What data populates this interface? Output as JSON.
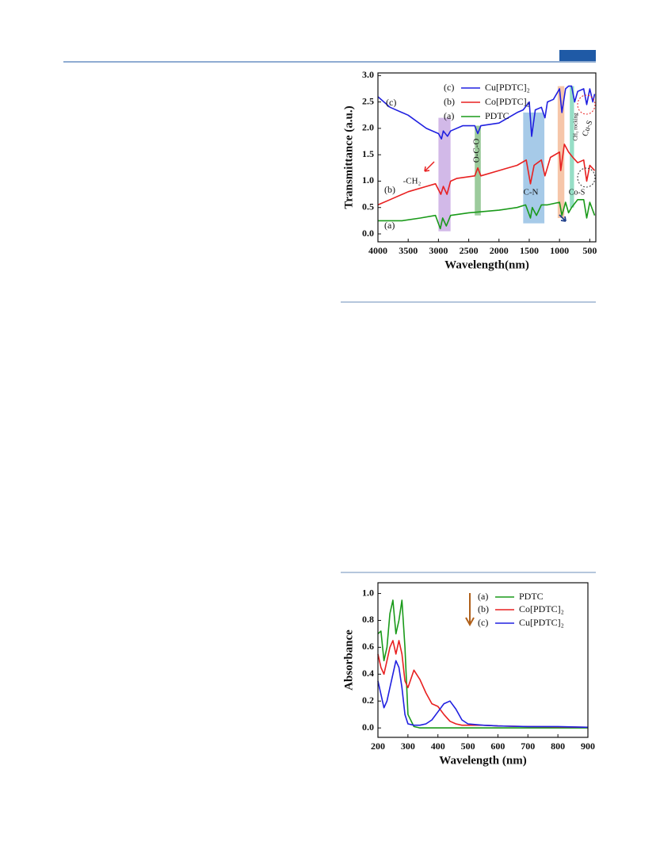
{
  "chart_data": [
    {
      "type": "line",
      "y_label": "Transmittance (a.u.)",
      "x_label": "Wavelength(nm)",
      "xlim": [
        4000,
        400
      ],
      "ylim": [
        -0.15,
        3.05
      ],
      "xticks": [
        4000,
        3500,
        3000,
        2500,
        2000,
        1500,
        1000,
        500
      ],
      "yticks": [
        {
          "value": 0,
          "label": "0.0"
        },
        0.5,
        {
          "value": 1,
          "label": "1.0"
        },
        1.5,
        {
          "value": 2,
          "label": "2.0"
        },
        2.5,
        {
          "value": 3,
          "label": "3.0"
        }
      ],
      "series": [
        {
          "name": "Cu[PDTC]₂",
          "label": "(c)",
          "color": "#2020e0",
          "x": [
            4000,
            3800,
            3500,
            3200,
            3000,
            2950,
            2920,
            2850,
            2800,
            2600,
            2400,
            2350,
            2300,
            2000,
            1700,
            1600,
            1500,
            1460,
            1400,
            1300,
            1240,
            1200,
            1100,
            1000,
            960,
            900,
            850,
            800,
            750,
            700,
            600,
            550,
            500,
            450,
            420
          ],
          "values": [
            2.6,
            2.4,
            2.25,
            2.0,
            1.9,
            1.8,
            1.95,
            1.85,
            1.95,
            2.05,
            2.05,
            1.9,
            2.05,
            2.1,
            2.3,
            2.35,
            2.5,
            1.85,
            2.35,
            2.4,
            2.2,
            2.5,
            2.55,
            2.75,
            2.3,
            2.75,
            2.8,
            2.8,
            2.5,
            2.7,
            2.75,
            2.45,
            2.75,
            2.5,
            2.65
          ]
        },
        {
          "name": "Co[PDTC]₂",
          "label": "(b)",
          "color": "#e82020",
          "x": [
            4000,
            3800,
            3500,
            3200,
            3050,
            2960,
            2920,
            2860,
            2800,
            2700,
            2400,
            2350,
            2300,
            2000,
            1700,
            1550,
            1480,
            1420,
            1300,
            1240,
            1150,
            1000,
            980,
            920,
            850,
            780,
            700,
            600,
            550,
            500,
            420
          ],
          "values": [
            0.55,
            0.65,
            0.8,
            0.9,
            0.95,
            0.75,
            0.9,
            0.75,
            1.0,
            1.05,
            1.1,
            1.25,
            1.1,
            1.2,
            1.3,
            1.4,
            0.95,
            1.3,
            1.4,
            1.1,
            1.45,
            1.55,
            1.2,
            1.7,
            1.55,
            1.45,
            1.35,
            1.4,
            1.0,
            1.3,
            1.2
          ]
        },
        {
          "name": "PDTC",
          "label": "(a)",
          "color": "#1a9a1a",
          "x": [
            4000,
            3600,
            3300,
            3050,
            2970,
            2930,
            2870,
            2800,
            2500,
            2000,
            1700,
            1560,
            1480,
            1450,
            1380,
            1300,
            1200,
            1000,
            960,
            900,
            850,
            800,
            700,
            600,
            550,
            500,
            420
          ],
          "values": [
            0.25,
            0.25,
            0.3,
            0.35,
            0.1,
            0.3,
            0.15,
            0.35,
            0.4,
            0.45,
            0.5,
            0.55,
            0.3,
            0.5,
            0.35,
            0.55,
            0.55,
            0.6,
            0.35,
            0.6,
            0.4,
            0.5,
            0.65,
            0.65,
            0.3,
            0.6,
            0.35
          ]
        }
      ],
      "bands": [
        {
          "xrange": [
            3000,
            2800
          ],
          "yrange": [
            0.05,
            2.2
          ],
          "color": "#b48ad8"
        },
        {
          "xrange": [
            2400,
            2300
          ],
          "yrange": [
            0.35,
            2.05
          ],
          "color": "#5aa85a"
        },
        {
          "xrange": [
            1600,
            1250
          ],
          "yrange": [
            0.2,
            2.3
          ],
          "color": "#6aa6d8"
        },
        {
          "xrange": [
            1030,
            920
          ],
          "yrange": [
            0.3,
            2.8
          ],
          "color": "#f0a070"
        },
        {
          "xrange": [
            830,
            760
          ],
          "yrange": [
            0.5,
            2.8
          ],
          "color": "#50c8a0"
        }
      ],
      "annotations": [
        "-CH₂",
        "O-C-O",
        "C-N",
        "CH₂ rocking",
        "Co-S",
        "Cu-S"
      ]
    },
    {
      "type": "line",
      "y_label": "Absorbance",
      "x_label": "Wavelength (nm)",
      "xlim": [
        200,
        900
      ],
      "ylim": [
        -0.07,
        1.08
      ],
      "xticks": [
        200,
        300,
        400,
        500,
        600,
        700,
        800,
        900
      ],
      "yticks": [
        {
          "value": 0,
          "label": "0.0"
        },
        0.2,
        0.4,
        0.6,
        0.8,
        {
          "value": 1,
          "label": "1.0"
        }
      ],
      "x": [
        200,
        210,
        220,
        230,
        240,
        250,
        260,
        270,
        280,
        290,
        300,
        320,
        340,
        360,
        380,
        400,
        420,
        440,
        460,
        480,
        500,
        550,
        600,
        700,
        800,
        900
      ],
      "series": [
        {
          "name": "PDTC",
          "label": "(a)",
          "color": "#1a9a1a",
          "values": [
            0.7,
            0.72,
            0.5,
            0.6,
            0.85,
            0.95,
            0.7,
            0.8,
            0.95,
            0.6,
            0.1,
            0.01,
            0,
            0,
            0,
            0,
            0,
            0,
            0,
            0,
            0,
            0,
            0,
            0,
            0,
            0
          ]
        },
        {
          "name": "Co[PDTC]₂",
          "label": "(b)",
          "color": "#e82020",
          "values": [
            0.55,
            0.45,
            0.4,
            0.5,
            0.6,
            0.65,
            0.55,
            0.65,
            0.55,
            0.35,
            0.3,
            0.43,
            0.36,
            0.26,
            0.18,
            0.16,
            0.1,
            0.05,
            0.03,
            0.02,
            0.02,
            0.02,
            0.015,
            0.01,
            0.008,
            0.005
          ]
        },
        {
          "name": "Cu[PDTC]₂",
          "label": "(c)",
          "color": "#2020e0",
          "values": [
            0.35,
            0.25,
            0.15,
            0.2,
            0.3,
            0.4,
            0.5,
            0.45,
            0.3,
            0.1,
            0.03,
            0.02,
            0.02,
            0.03,
            0.06,
            0.12,
            0.18,
            0.2,
            0.14,
            0.06,
            0.03,
            0.02,
            0.015,
            0.01,
            0.01,
            0.005
          ]
        }
      ]
    }
  ]
}
